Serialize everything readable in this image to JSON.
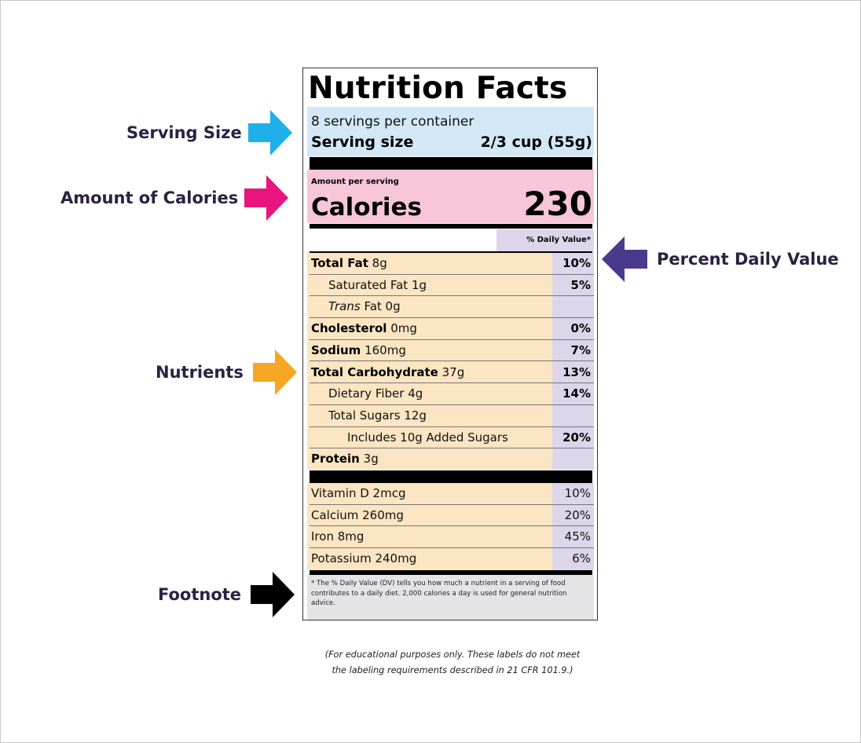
{
  "callouts": {
    "serving_size": {
      "label": "Serving Size",
      "color": "#1fb0ea"
    },
    "calories": {
      "label": "Amount of Calories",
      "color": "#e8157c"
    },
    "percent_dv": {
      "label": "Percent Daily Value",
      "color": "#4b3a8c"
    },
    "nutrients": {
      "label": "Nutrients",
      "color": "#f5a623"
    },
    "footnote": {
      "label": "Footnote",
      "color": "#000000"
    }
  },
  "label": {
    "title": "Nutrition Facts",
    "servings_per_container": "8 servings per container",
    "serving_size_label": "Serving size",
    "serving_size_value": "2/3 cup (55g)",
    "amount_per_serving": "Amount per serving",
    "calories_label": "Calories",
    "calories_value": "230",
    "dv_header": "% Daily Value*",
    "nutrients": [
      {
        "name": "Total Fat",
        "amount": "8g",
        "dv": "10%"
      },
      {
        "name": "Saturated Fat",
        "amount": "1g",
        "dv": "5%"
      },
      {
        "name": "Trans",
        "amount": "Fat 0g",
        "dv": ""
      },
      {
        "name": "Cholesterol",
        "amount": "0mg",
        "dv": "0%"
      },
      {
        "name": "Sodium",
        "amount": "160mg",
        "dv": "7%"
      },
      {
        "name": "Total Carbohydrate",
        "amount": "37g",
        "dv": "13%"
      },
      {
        "name": "Dietary Fiber",
        "amount": "4g",
        "dv": "14%"
      },
      {
        "name": "Total Sugars",
        "amount": "12g",
        "dv": ""
      },
      {
        "name": "Includes 10g Added Sugars",
        "amount": "",
        "dv": "20%"
      },
      {
        "name": "Protein",
        "amount": "3g",
        "dv": ""
      }
    ],
    "vitamins": [
      {
        "text": "Vitamin D 2mcg",
        "dv": "10%"
      },
      {
        "text": "Calcium 260mg",
        "dv": "20%"
      },
      {
        "text": "Iron 8mg",
        "dv": "45%"
      },
      {
        "text": "Potassium 240mg",
        "dv": "6%"
      }
    ],
    "footnote_text": "* The % Daily Value (DV) tells you how much a nutrient in a serving of food contributes to a daily diet. 2,000 calories a day is used for general nutrition advice."
  },
  "disclaimer": {
    "line1": "(For educational purposes only. These labels do not meet",
    "line2": "the labeling requirements described in 21 CFR 101.9.)"
  }
}
